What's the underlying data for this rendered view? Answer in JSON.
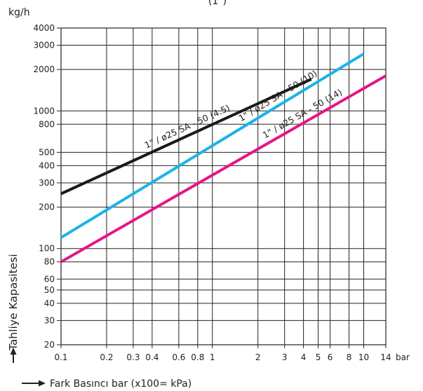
{
  "chart_data": {
    "type": "line",
    "title": "(1\")",
    "ylabel": "Tahliye Kapasitesi",
    "yunit": "kg/h",
    "xlabel": "Fark Basıncı bar (x100= kPa)",
    "xunit": "bar",
    "x_scale": "log",
    "y_scale": "log",
    "xlim": [
      0.1,
      14
    ],
    "ylim": [
      20,
      4000
    ],
    "grid": true,
    "x_ticks": [
      {
        "value": 0.1,
        "label": "0.1"
      },
      {
        "value": 0.2,
        "label": "0.2"
      },
      {
        "value": 0.3,
        "label": "0.3"
      },
      {
        "value": 0.4,
        "label": "0.4"
      },
      {
        "value": 0.6,
        "label": "0.6"
      },
      {
        "value": 0.8,
        "label": "0.8"
      },
      {
        "value": 1,
        "label": "1"
      },
      {
        "value": 2,
        "label": "2"
      },
      {
        "value": 3,
        "label": "3"
      },
      {
        "value": 4,
        "label": "4"
      },
      {
        "value": 5,
        "label": "5"
      },
      {
        "value": 6,
        "label": "6"
      },
      {
        "value": 8,
        "label": "8"
      },
      {
        "value": 10,
        "label": "10"
      },
      {
        "value": 14,
        "label": "14"
      }
    ],
    "y_ticks": [
      {
        "value": 20,
        "label": "20"
      },
      {
        "value": 30,
        "label": "30"
      },
      {
        "value": 40,
        "label": "40"
      },
      {
        "value": 50,
        "label": "50"
      },
      {
        "value": 60,
        "label": "60"
      },
      {
        "value": 80,
        "label": "80"
      },
      {
        "value": 100,
        "label": "100"
      },
      {
        "value": 200,
        "label": "200"
      },
      {
        "value": 300,
        "label": "300"
      },
      {
        "value": 400,
        "label": "400"
      },
      {
        "value": 500,
        "label": "500"
      },
      {
        "value": 800,
        "label": "800"
      },
      {
        "value": 1000,
        "label": "1000"
      },
      {
        "value": 2000,
        "label": "2000"
      },
      {
        "value": 3000,
        "label": "3000"
      },
      {
        "value": 4000,
        "label": "4000"
      }
    ],
    "series": [
      {
        "name": "1\" / ø25 SA - 50 (4.5)",
        "color": "#1a1a1a",
        "x": [
          0.1,
          4.5
        ],
        "y": [
          250,
          1700
        ]
      },
      {
        "name": "1\" / ø25 SA - 50 (10)",
        "color": "#1ab3e8",
        "x": [
          0.1,
          10
        ],
        "y": [
          120,
          2600
        ]
      },
      {
        "name": "1\" / ø25 SA - 50 (14)",
        "color": "#e5158a",
        "x": [
          0.1,
          14
        ],
        "y": [
          80,
          1800
        ]
      }
    ]
  }
}
